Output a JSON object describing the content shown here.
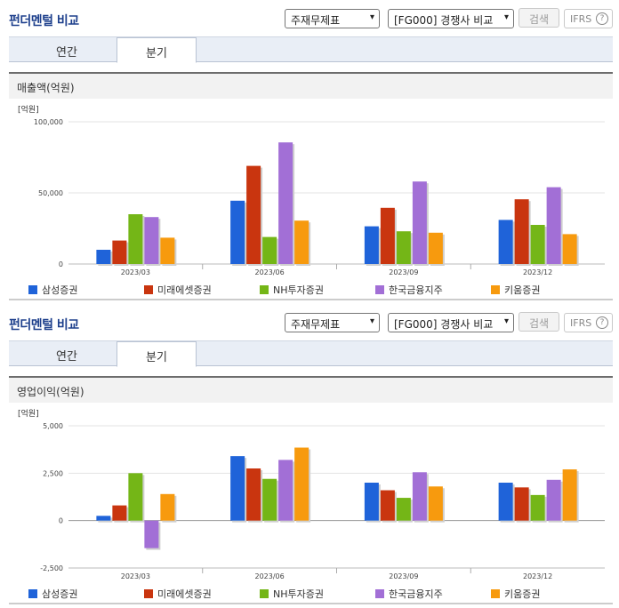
{
  "header": {
    "title": "펀더멘털 비교",
    "select1": "주재무제표",
    "select2": "[FG000] 경쟁사 비교",
    "search_label": "검색",
    "ifrs_label": "IFRS",
    "help_label": "?"
  },
  "tabs": [
    "연간",
    "분기"
  ],
  "active_tab": "분기",
  "unit_label": "[억원]",
  "colors": {
    "삼성증권": "#1f63d9",
    "미래에셋증권": "#c9350f",
    "NH투자증권": "#74b617",
    "한국금융지주": "#a26fd6",
    "키움증권": "#f79a0e"
  },
  "chart_data": [
    {
      "type": "bar",
      "title": "매출액(억원)",
      "ylabel": "[억원]",
      "categories": [
        "2023/03",
        "2023/06",
        "2023/09",
        "2023/12"
      ],
      "yticks": [
        "100,000",
        "50,000",
        "0"
      ],
      "ylim": [
        0,
        100000
      ],
      "series": [
        {
          "name": "삼성증권",
          "values": [
            10000,
            44500,
            26500,
            31000
          ]
        },
        {
          "name": "미래에셋증권",
          "values": [
            16500,
            69000,
            39500,
            45500
          ]
        },
        {
          "name": "NH투자증권",
          "values": [
            35000,
            19000,
            23000,
            27500
          ]
        },
        {
          "name": "한국금융지주",
          "values": [
            33000,
            85500,
            58000,
            54000
          ]
        },
        {
          "name": "키움증권",
          "values": [
            18500,
            30500,
            22000,
            21000
          ]
        }
      ],
      "grid": true,
      "legend": "bottom"
    },
    {
      "type": "bar",
      "title": "영업이익(억원)",
      "ylabel": "[억원]",
      "categories": [
        "2023/03",
        "2023/06",
        "2023/09",
        "2023/12"
      ],
      "yticks": [
        "5,000",
        "2,500",
        "0",
        "-2,500"
      ],
      "ylim": [
        -2500,
        5000
      ],
      "series": [
        {
          "name": "삼성증권",
          "values": [
            250,
            3400,
            2000,
            2000
          ]
        },
        {
          "name": "미래에셋증권",
          "values": [
            800,
            2750,
            1600,
            1750
          ]
        },
        {
          "name": "NH투자증권",
          "values": [
            2500,
            2200,
            1200,
            1350
          ]
        },
        {
          "name": "한국금융지주",
          "values": [
            -1450,
            3200,
            2550,
            2150
          ]
        },
        {
          "name": "키움증권",
          "values": [
            1400,
            3850,
            1800,
            2700
          ]
        }
      ],
      "grid": true,
      "legend": "bottom"
    }
  ]
}
